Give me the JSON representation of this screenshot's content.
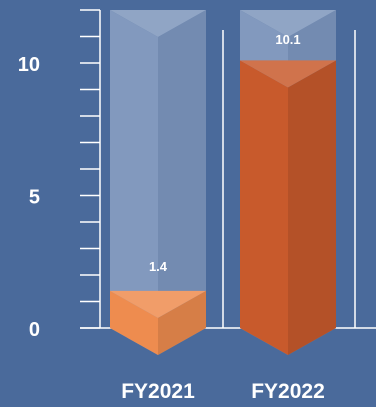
{
  "chart_data": {
    "type": "bar",
    "style": "3d-cylinder",
    "categories": [
      "FY2021",
      "FY2022"
    ],
    "values": [
      1.4,
      10.1
    ],
    "data_labels": [
      "1.4",
      "10.1"
    ],
    "ylim": [
      0,
      12
    ],
    "y_ticks": [
      {
        "value": 0,
        "label": "0"
      },
      {
        "value": 5,
        "label": "5"
      },
      {
        "value": 10,
        "label": "10"
      }
    ],
    "title": "",
    "xlabel": "",
    "ylabel": "",
    "legend": "none",
    "colors": {
      "background": "#4a6a9b",
      "axis": "#ffffff",
      "track": "#7e97bd",
      "bars": [
        "#ee8c4f",
        "#c85a2c"
      ]
    }
  }
}
